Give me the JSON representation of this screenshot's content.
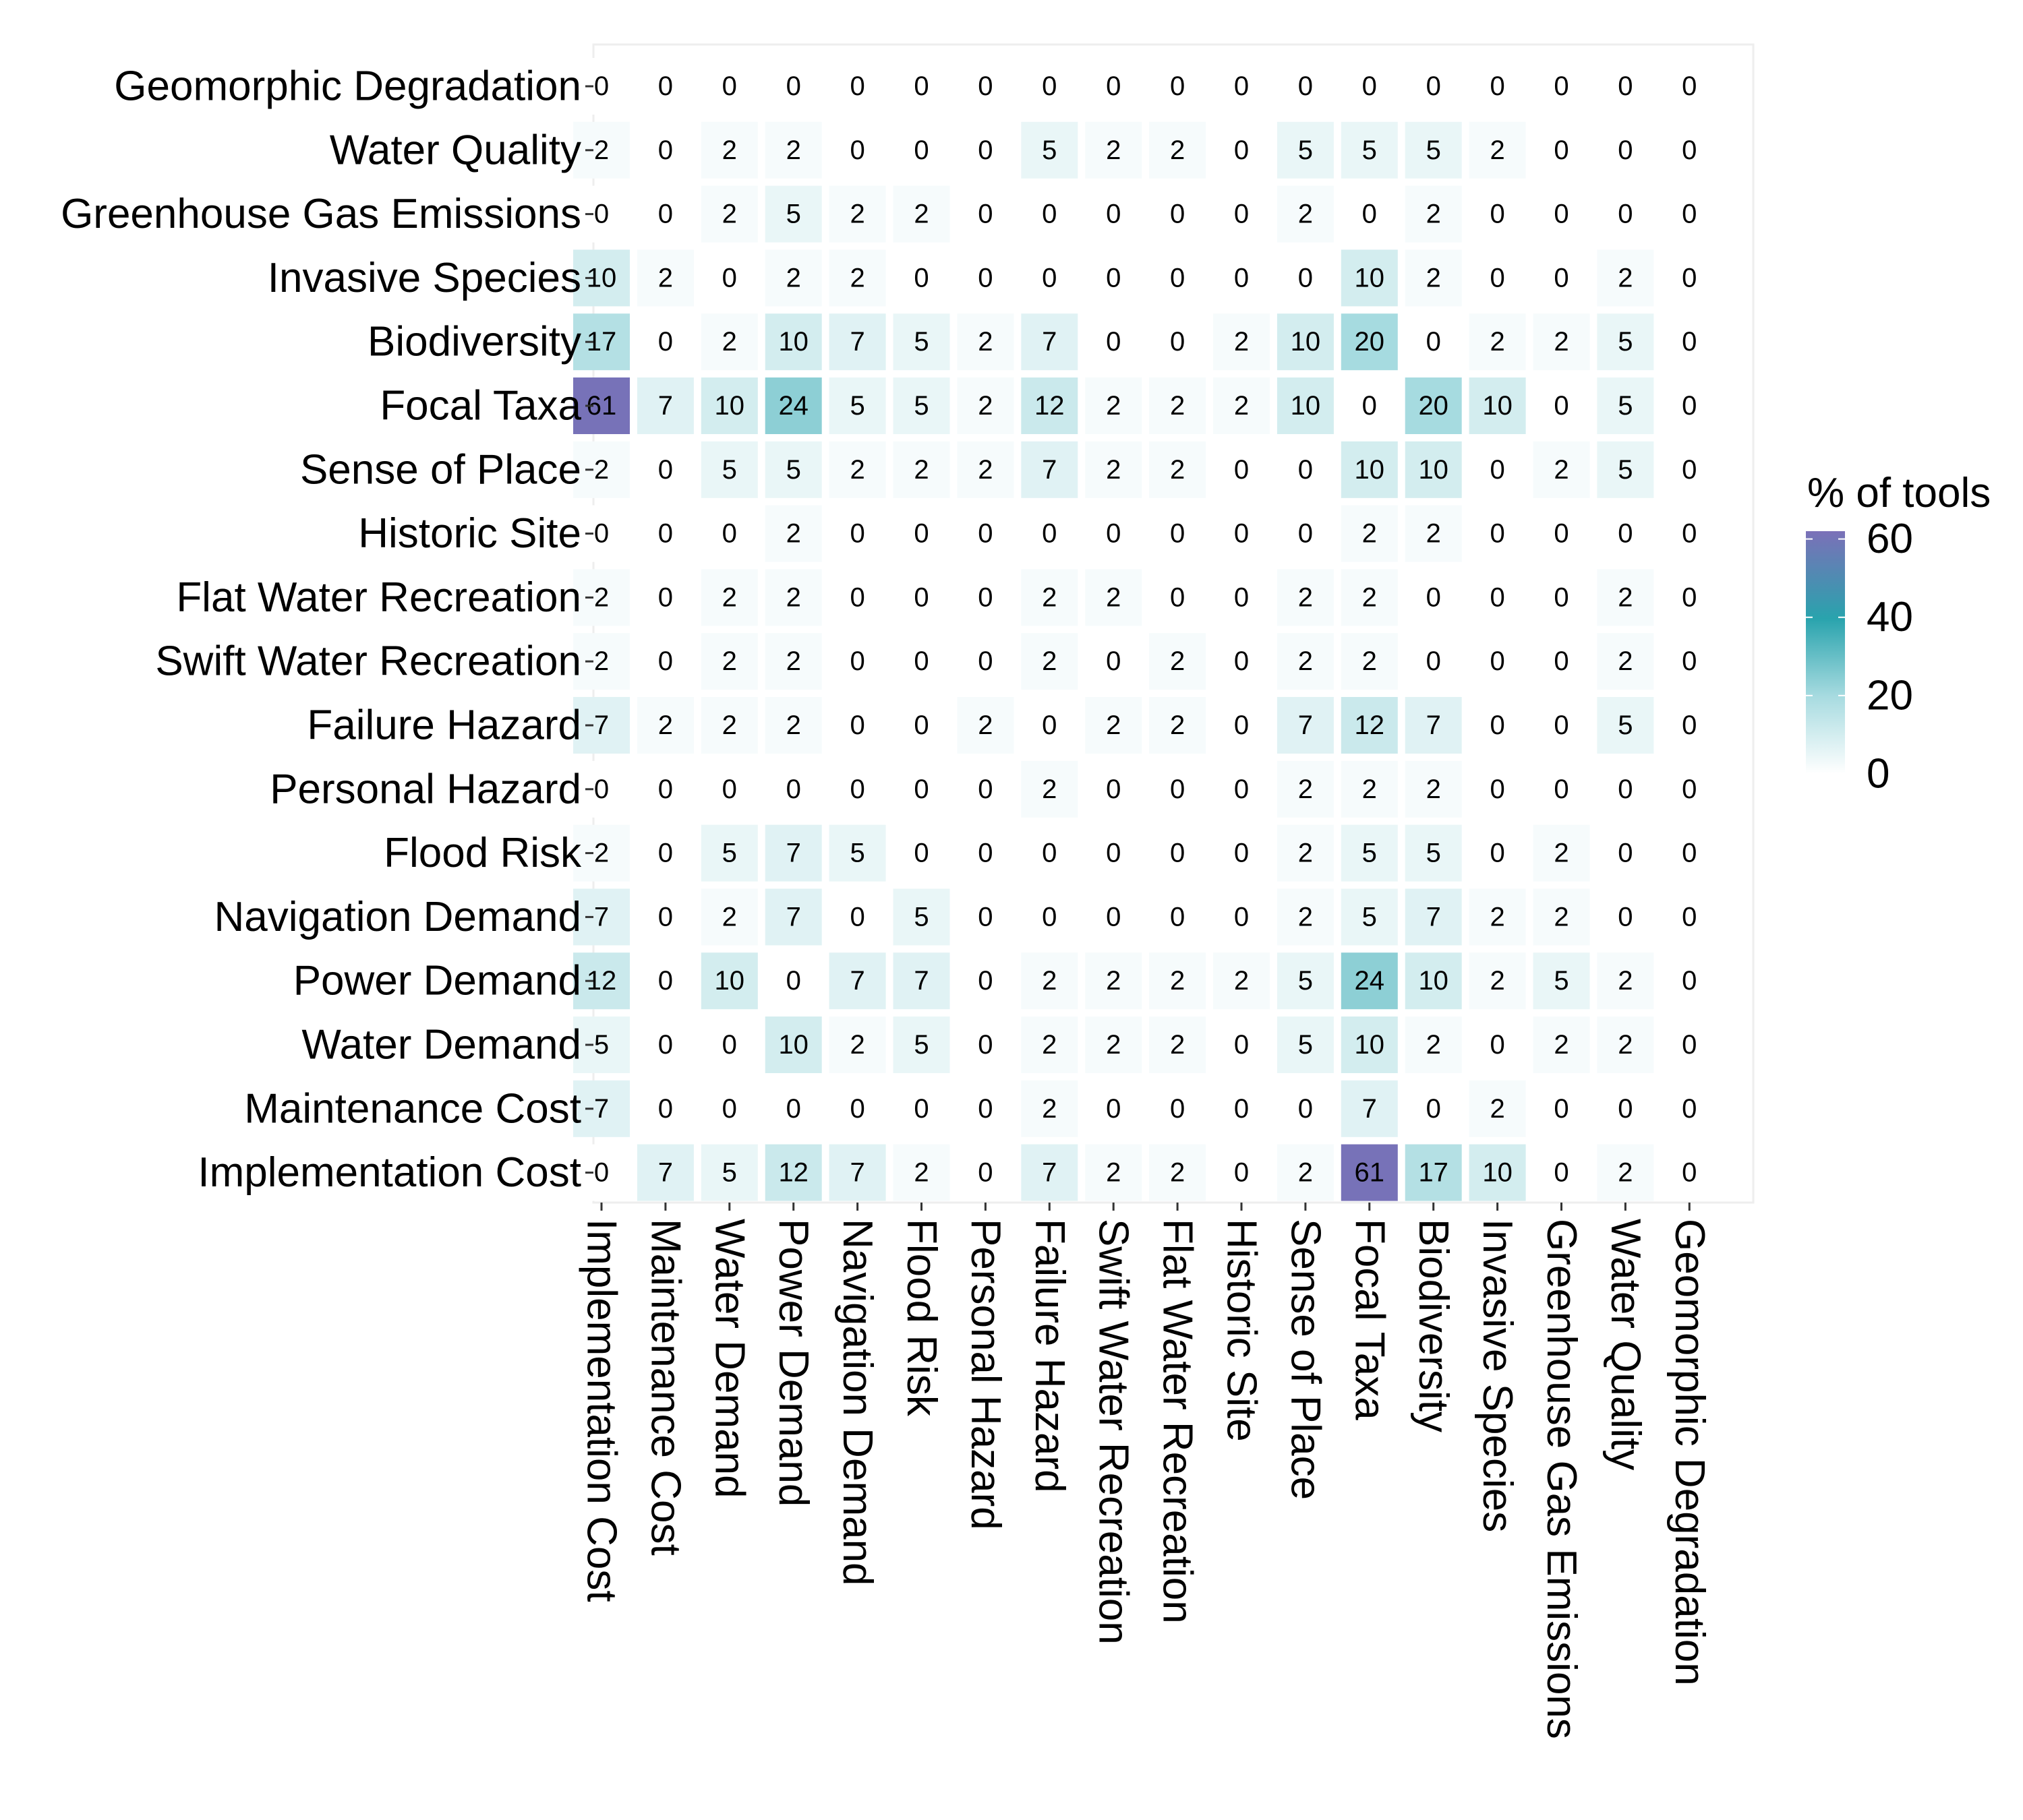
{
  "colors": {
    "low": "#ffffff",
    "mid_low": "#a7dbe0",
    "mid": "#29a3ad",
    "high": "#7b70b8",
    "panel_border": "#eeeeee",
    "tick": "#333333"
  },
  "chart_data": {
    "type": "heatmap",
    "title": "",
    "xlabel": "",
    "ylabel": "",
    "rows": [
      "Geomorphic Degradation",
      "Water Quality",
      "Greenhouse Gas Emissions",
      "Invasive Species",
      "Biodiversity",
      "Focal Taxa",
      "Sense of Place",
      "Historic Site",
      "Flat Water Recreation",
      "Swift Water Recreation",
      "Failure Hazard",
      "Personal Hazard",
      "Flood Risk",
      "Navigation Demand",
      "Power Demand",
      "Water Demand",
      "Maintenance Cost",
      "Implementation Cost"
    ],
    "columns": [
      "Implementation Cost",
      "Maintenance Cost",
      "Water Demand",
      "Power Demand",
      "Navigation Demand",
      "Flood Risk",
      "Personal Hazard",
      "Failure Hazard",
      "Swift Water Recreation",
      "Flat Water Recreation",
      "Historic Site",
      "Sense of Place",
      "Focal Taxa",
      "Biodiversity",
      "Invasive Species",
      "Greenhouse Gas Emissions",
      "Water Quality",
      "Geomorphic Degradation"
    ],
    "values": [
      [
        0,
        0,
        0,
        0,
        0,
        0,
        0,
        0,
        0,
        0,
        0,
        0,
        0,
        0,
        0,
        0,
        0,
        0
      ],
      [
        2,
        0,
        2,
        2,
        0,
        0,
        0,
        5,
        2,
        2,
        0,
        5,
        5,
        5,
        2,
        0,
        0,
        0
      ],
      [
        0,
        0,
        2,
        5,
        2,
        2,
        0,
        0,
        0,
        0,
        0,
        2,
        0,
        2,
        0,
        0,
        0,
        0
      ],
      [
        10,
        2,
        0,
        2,
        2,
        0,
        0,
        0,
        0,
        0,
        0,
        0,
        10,
        2,
        0,
        0,
        2,
        0
      ],
      [
        17,
        0,
        2,
        10,
        7,
        5,
        2,
        7,
        0,
        0,
        2,
        10,
        20,
        0,
        2,
        2,
        5,
        0
      ],
      [
        61,
        7,
        10,
        24,
        5,
        5,
        2,
        12,
        2,
        2,
        2,
        10,
        0,
        20,
        10,
        0,
        5,
        0
      ],
      [
        2,
        0,
        5,
        5,
        2,
        2,
        2,
        7,
        2,
        2,
        0,
        0,
        10,
        10,
        0,
        2,
        5,
        0
      ],
      [
        0,
        0,
        0,
        2,
        0,
        0,
        0,
        0,
        0,
        0,
        0,
        0,
        2,
        2,
        0,
        0,
        0,
        0
      ],
      [
        2,
        0,
        2,
        2,
        0,
        0,
        0,
        2,
        2,
        0,
        0,
        2,
        2,
        0,
        0,
        0,
        2,
        0
      ],
      [
        2,
        0,
        2,
        2,
        0,
        0,
        0,
        2,
        0,
        2,
        0,
        2,
        2,
        0,
        0,
        0,
        2,
        0
      ],
      [
        7,
        2,
        2,
        2,
        0,
        0,
        2,
        0,
        2,
        2,
        0,
        7,
        12,
        7,
        0,
        0,
        5,
        0
      ],
      [
        0,
        0,
        0,
        0,
        0,
        0,
        0,
        2,
        0,
        0,
        0,
        2,
        2,
        2,
        0,
        0,
        0,
        0
      ],
      [
        2,
        0,
        5,
        7,
        5,
        0,
        0,
        0,
        0,
        0,
        0,
        2,
        5,
        5,
        0,
        2,
        0,
        0
      ],
      [
        7,
        0,
        2,
        7,
        0,
        5,
        0,
        0,
        0,
        0,
        0,
        2,
        5,
        7,
        2,
        2,
        0,
        0
      ],
      [
        12,
        0,
        10,
        0,
        7,
        7,
        0,
        2,
        2,
        2,
        2,
        5,
        24,
        10,
        2,
        5,
        2,
        0
      ],
      [
        5,
        0,
        0,
        10,
        2,
        5,
        0,
        2,
        2,
        2,
        0,
        5,
        10,
        2,
        0,
        2,
        2,
        0
      ],
      [
        7,
        0,
        0,
        0,
        0,
        0,
        0,
        2,
        0,
        0,
        0,
        0,
        7,
        0,
        2,
        0,
        0,
        0
      ],
      [
        0,
        7,
        5,
        12,
        7,
        2,
        0,
        7,
        2,
        2,
        0,
        2,
        61,
        17,
        10,
        0,
        2,
        0
      ]
    ],
    "color_range": [
      0,
      62
    ],
    "legend": {
      "title": "% of tools",
      "ticks": [
        0,
        20,
        40,
        60
      ],
      "placement": "right"
    },
    "grid": false
  }
}
